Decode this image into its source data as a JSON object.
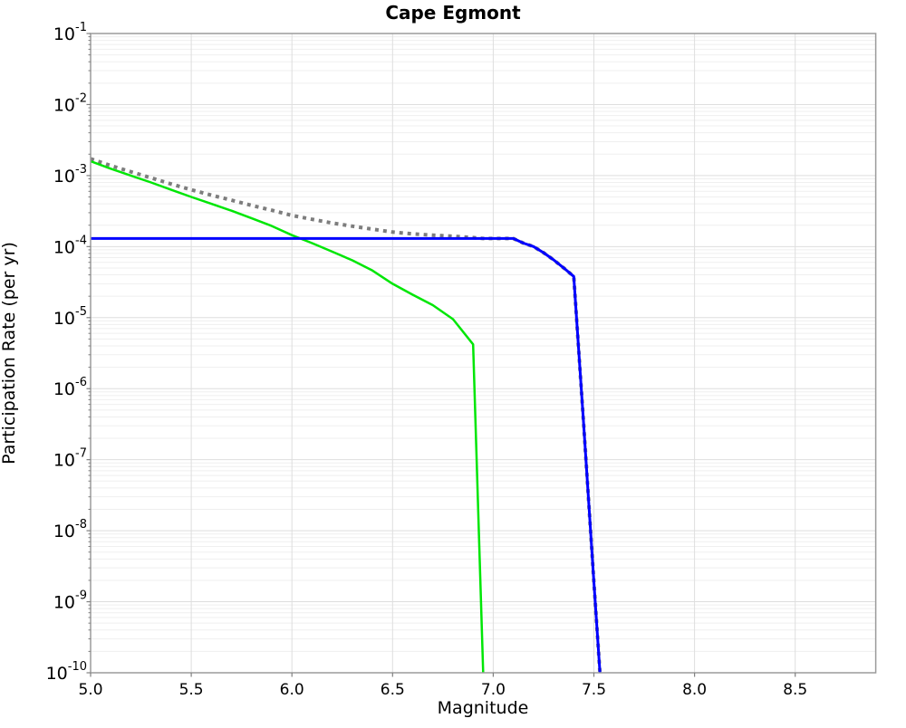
{
  "chart_data": {
    "type": "line",
    "title": "Cape Egmont",
    "xlabel": "Magnitude",
    "ylabel": "Participation Rate (per yr)",
    "xlim": [
      5.0,
      8.9
    ],
    "ylim": [
      1e-10,
      0.1
    ],
    "y_scale": "log",
    "grid": true,
    "legend": "none",
    "x_tick_labels": [
      "5.0",
      "5.5",
      "6.0",
      "6.5",
      "7.0",
      "7.5",
      "8.0",
      "8.5"
    ],
    "x_tick_values": [
      5.0,
      5.5,
      6.0,
      6.5,
      7.0,
      7.5,
      8.0,
      8.5
    ],
    "y_tick_base": "10",
    "y_tick_exponents": [
      "-1",
      "-2",
      "-3",
      "-4",
      "-5",
      "-6",
      "-7",
      "-8",
      "-9",
      "-10"
    ],
    "colors": {
      "background": "#ffffff",
      "plot_border": "#9b9b9b",
      "grid_major": "#dedede",
      "grid_minor": "#efefef",
      "tick_mark": "#808080"
    },
    "series": [
      {
        "name": "gray-dotted-total",
        "color": "#7d7d7d",
        "style": "dotted",
        "width": 4,
        "points": [
          [
            5.0,
            0.00172
          ],
          [
            5.1,
            0.00138
          ],
          [
            5.2,
            0.00113
          ],
          [
            5.3,
            0.00093
          ],
          [
            5.4,
            0.00076
          ],
          [
            5.5,
            0.00063
          ],
          [
            5.6,
            0.00053
          ],
          [
            5.7,
            0.00045
          ],
          [
            5.8,
            0.00038
          ],
          [
            5.9,
            0.000325
          ],
          [
            6.0,
            0.000275
          ],
          [
            6.1,
            0.000242
          ],
          [
            6.2,
            0.000215
          ],
          [
            6.3,
            0.000194
          ],
          [
            6.4,
            0.000176
          ],
          [
            6.5,
            0.00016
          ],
          [
            6.6,
            0.000151
          ],
          [
            6.7,
            0.000145
          ],
          [
            6.8,
            0.00014
          ],
          [
            6.9,
            0.000134
          ],
          [
            6.95,
            0.00013
          ],
          [
            7.1,
            0.00013
          ],
          [
            7.15,
            0.000112
          ],
          [
            7.2,
            0.0001
          ],
          [
            7.25,
            8.2e-05
          ],
          [
            7.3,
            6.5e-05
          ],
          [
            7.35,
            5e-05
          ],
          [
            7.4,
            3.8e-05
          ],
          [
            7.45,
            2.9e-07
          ],
          [
            7.5,
            1.9e-09
          ],
          [
            7.53,
            1e-10
          ]
        ]
      },
      {
        "name": "green-solid",
        "color": "#00e606",
        "style": "solid",
        "width": 2.5,
        "points": [
          [
            5.0,
            0.00159
          ],
          [
            5.1,
            0.00125
          ],
          [
            5.2,
            0.001
          ],
          [
            5.3,
            0.0008
          ],
          [
            5.4,
            0.00063
          ],
          [
            5.5,
            0.0005
          ],
          [
            5.6,
            0.0004
          ],
          [
            5.7,
            0.00032
          ],
          [
            5.8,
            0.00025
          ],
          [
            5.9,
            0.000195
          ],
          [
            6.0,
            0.000145
          ],
          [
            6.1,
            0.000112
          ],
          [
            6.2,
            8.5e-05
          ],
          [
            6.3,
            6.4e-05
          ],
          [
            6.4,
            4.6e-05
          ],
          [
            6.5,
            3e-05
          ],
          [
            6.6,
            2.1e-05
          ],
          [
            6.7,
            1.5e-05
          ],
          [
            6.8,
            9.5e-06
          ],
          [
            6.9,
            4.2e-06
          ],
          [
            6.95,
            1e-10
          ]
        ]
      },
      {
        "name": "blue-solid",
        "color": "#0000ff",
        "style": "solid",
        "width": 3,
        "points": [
          [
            5.0,
            0.00013
          ],
          [
            7.1,
            0.00013
          ],
          [
            7.15,
            0.000112
          ],
          [
            7.2,
            0.0001
          ],
          [
            7.25,
            8.2e-05
          ],
          [
            7.3,
            6.5e-05
          ],
          [
            7.35,
            5e-05
          ],
          [
            7.4,
            3.8e-05
          ],
          [
            7.45,
            2.9e-07
          ],
          [
            7.5,
            1.9e-09
          ],
          [
            7.53,
            1e-10
          ]
        ]
      }
    ]
  }
}
